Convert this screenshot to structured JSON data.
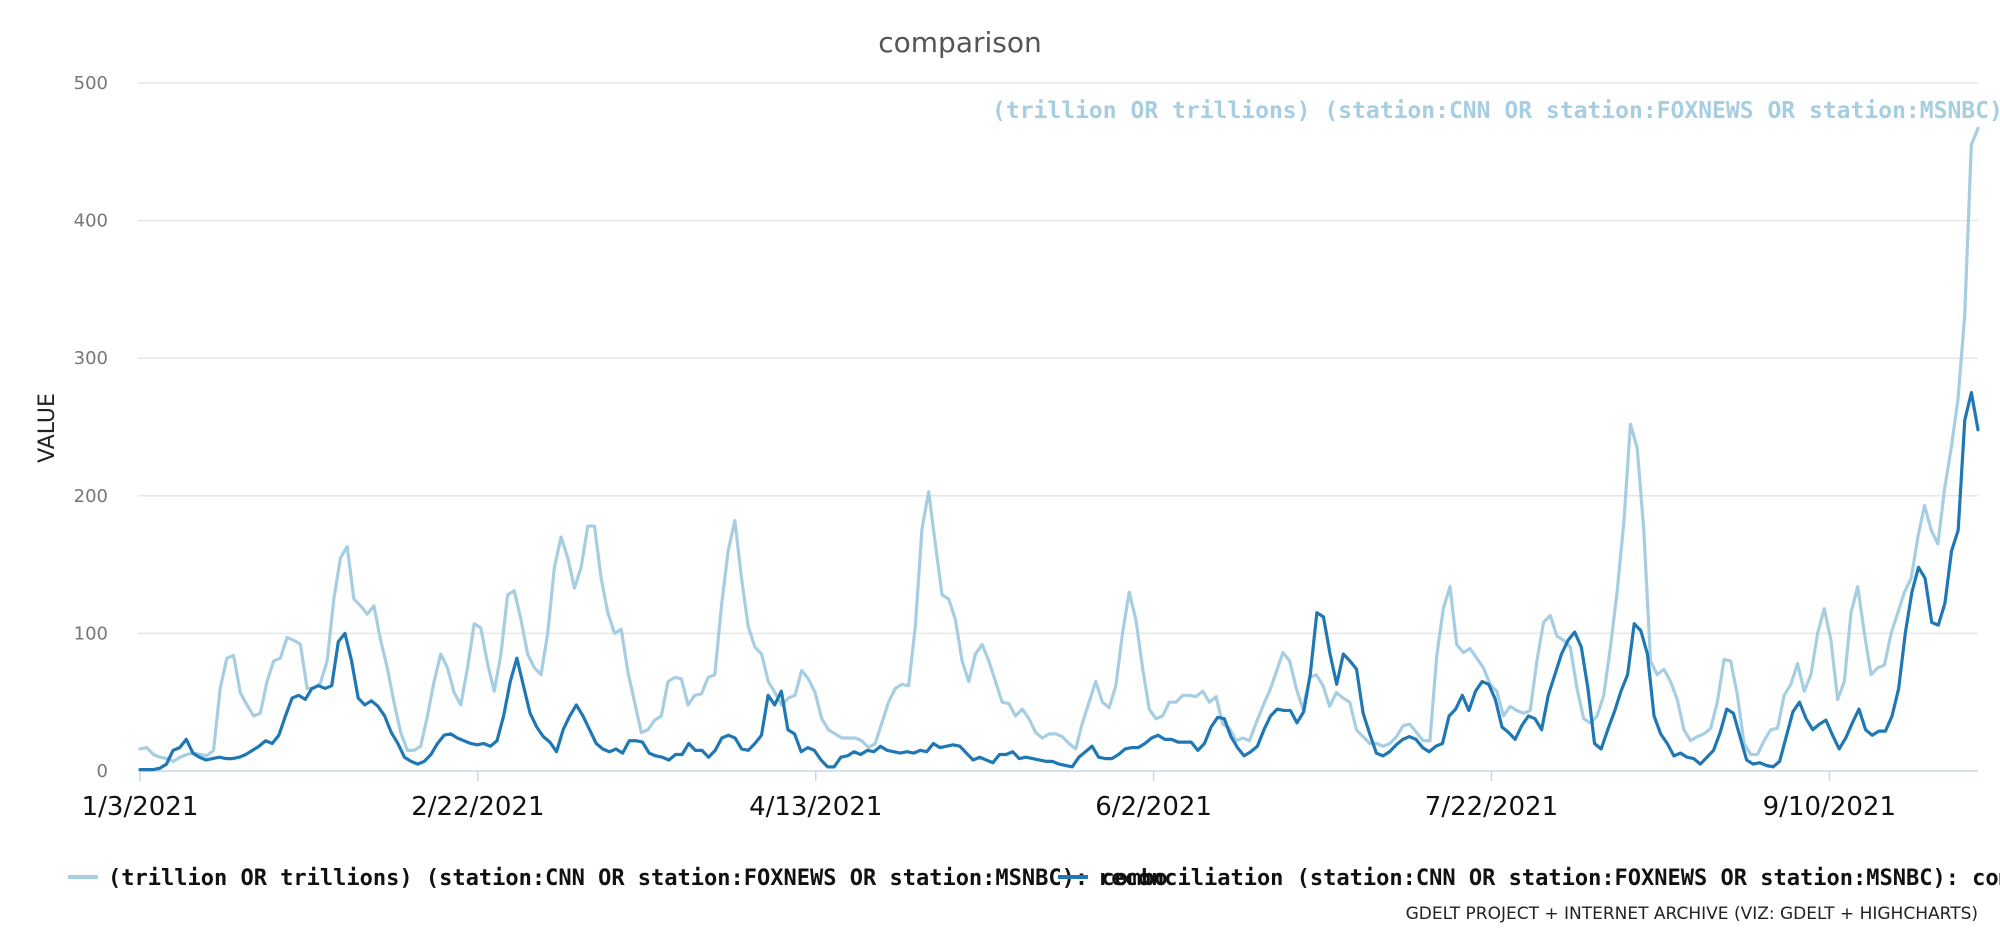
{
  "chart_data": {
    "type": "line",
    "title": "comparison",
    "ylabel": "VALUE",
    "xlabel": "",
    "ylim": [
      0,
      500
    ],
    "yticks": [
      0,
      100,
      200,
      300,
      400,
      500
    ],
    "x_tick_labels": [
      "1/3/2021",
      "2/22/2021",
      "4/13/2021",
      "6/2/2021",
      "7/22/2021",
      "9/10/2021"
    ],
    "x_start": "1/3/2021",
    "x_end": "10/2/2021",
    "grid": true,
    "legend_position": "bottom",
    "credit": "GDELT PROJECT + INTERNET ARCHIVE (VIZ: GDELT + HIGHCHARTS)",
    "end_label": "(trillion OR trillions) (station:CNN OR station:FOXNEWS OR station:MSNBC): c",
    "series": [
      {
        "name": "(trillion OR trillions) (station:CNN OR station:FOXNEWS OR station:MSNBC): combo",
        "color": "#a6cee3",
        "values": [
          16,
          17,
          12,
          10,
          9,
          7,
          10,
          12,
          13,
          12,
          11,
          15,
          60,
          82,
          84,
          57,
          48,
          40,
          42,
          65,
          80,
          82,
          97,
          95,
          92,
          60,
          60,
          64,
          80,
          125,
          155,
          163,
          125,
          120,
          114,
          120,
          95,
          75,
          50,
          28,
          15,
          15,
          18,
          40,
          65,
          85,
          75,
          57,
          48,
          75,
          107,
          104,
          78,
          58,
          85,
          128,
          131,
          110,
          85,
          75,
          70,
          100,
          148,
          170,
          155,
          133,
          148,
          178,
          178,
          140,
          115,
          100,
          103,
          72,
          50,
          28,
          30,
          37,
          40,
          65,
          68,
          67,
          48,
          55,
          56,
          68,
          70,
          120,
          160,
          182,
          140,
          105,
          90,
          85,
          65,
          57,
          48,
          53,
          55,
          73,
          67,
          57,
          38,
          30,
          27,
          24,
          24,
          24,
          22,
          17,
          20,
          35,
          50,
          60,
          63,
          62,
          105,
          176,
          203,
          165,
          128,
          125,
          110,
          80,
          65,
          85,
          92,
          80,
          65,
          50,
          49,
          40,
          45,
          38,
          28,
          24,
          27,
          27,
          25,
          20,
          16,
          35,
          50,
          65,
          50,
          46,
          62,
          100,
          130,
          110,
          75,
          45,
          38,
          40,
          50,
          50,
          55,
          55,
          54,
          58,
          50,
          54,
          34,
          31,
          22,
          24,
          22,
          35,
          47,
          58,
          72,
          86,
          80,
          60,
          45,
          68,
          70,
          62,
          47,
          57,
          53,
          50,
          30,
          25,
          20,
          20,
          18,
          20,
          25,
          33,
          34,
          28,
          22,
          22,
          83,
          118,
          134,
          92,
          86,
          89,
          82,
          75,
          63,
          58,
          40,
          47,
          44,
          42,
          44,
          80,
          108,
          113,
          98,
          95,
          90,
          60,
          38,
          35,
          40,
          55,
          90,
          130,
          180,
          252,
          235,
          175,
          80,
          70,
          74,
          65,
          52,
          30,
          22,
          25,
          27,
          31,
          50,
          81,
          80,
          55,
          20,
          12,
          12,
          22,
          30,
          31,
          55,
          63,
          78,
          58,
          70,
          100,
          118,
          95,
          52,
          65,
          115,
          134,
          100,
          70,
          75,
          77,
          100,
          115,
          130,
          140,
          170,
          193,
          175,
          165,
          205,
          235,
          270,
          330,
          455,
          467
        ]
      },
      {
        "name": "reconciliation (station:CNN OR station:FOXNEWS OR station:MSNBC): combo",
        "color": "#1f78b4",
        "values": [
          1,
          1,
          1,
          2,
          5,
          15,
          17,
          23,
          13,
          10,
          8,
          9,
          10,
          9,
          9,
          10,
          12,
          15,
          18,
          22,
          20,
          26,
          40,
          53,
          55,
          52,
          60,
          62,
          60,
          62,
          94,
          100,
          80,
          53,
          48,
          51,
          47,
          40,
          28,
          20,
          10,
          7,
          5,
          7,
          12,
          20,
          26,
          27,
          24,
          22,
          20,
          19,
          20,
          18,
          22,
          40,
          65,
          82,
          62,
          42,
          32,
          25,
          21,
          14,
          30,
          40,
          48,
          40,
          30,
          20,
          16,
          14,
          16,
          13,
          22,
          22,
          21,
          13,
          11,
          10,
          8,
          12,
          12,
          20,
          15,
          15,
          10,
          15,
          24,
          26,
          24,
          16,
          15,
          20,
          26,
          55,
          48,
          58,
          30,
          27,
          14,
          17,
          15,
          8,
          3,
          3,
          10,
          11,
          14,
          12,
          15,
          14,
          18,
          15,
          14,
          13,
          14,
          13,
          15,
          14,
          20,
          17,
          18,
          19,
          18,
          13,
          8,
          10,
          8,
          6,
          12,
          12,
          14,
          9,
          10,
          9,
          8,
          7,
          7,
          5,
          4,
          3,
          10,
          14,
          18,
          10,
          9,
          9,
          12,
          16,
          17,
          17,
          20,
          24,
          26,
          23,
          23,
          21,
          21,
          21,
          15,
          20,
          32,
          39,
          38,
          25,
          17,
          11,
          14,
          18,
          30,
          40,
          45,
          44,
          44,
          35,
          43,
          70,
          115,
          112,
          85,
          63,
          85,
          80,
          74,
          42,
          27,
          13,
          11,
          14,
          19,
          23,
          25,
          23,
          17,
          14,
          18,
          20,
          40,
          45,
          55,
          44,
          58,
          65,
          63,
          52,
          32,
          28,
          23,
          33,
          40,
          38,
          30,
          55,
          70,
          85,
          95,
          101,
          90,
          60,
          20,
          16,
          30,
          43,
          58,
          70,
          107,
          102,
          85,
          40,
          27,
          20,
          11,
          13,
          10,
          9,
          5,
          10,
          15,
          28,
          45,
          42,
          25,
          8,
          5,
          6,
          4,
          3,
          7,
          25,
          43,
          50,
          38,
          30,
          34,
          37,
          26,
          16,
          24,
          35,
          45,
          30,
          26,
          29,
          29,
          40,
          60,
          100,
          130,
          148,
          140,
          108,
          106,
          122,
          160,
          175,
          255,
          275,
          248
        ]
      }
    ]
  }
}
